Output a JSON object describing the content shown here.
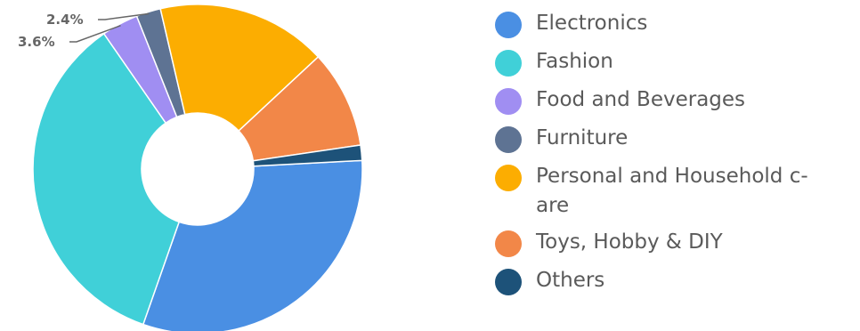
{
  "chart_data": {
    "type": "pie",
    "variant": "donut",
    "categories": [
      "Electronics",
      "Fashion",
      "Food and Beverages",
      "Furniture",
      "Personal and Household c-are",
      "Toys, Hobby & DIY",
      "Others"
    ],
    "values": [
      31.2,
      35.0,
      3.6,
      2.4,
      16.7,
      9.6,
      1.5
    ],
    "colors": [
      "#4a8fe3",
      "#40d0d8",
      "#a08ef2",
      "#5e7393",
      "#fcad01",
      "#f28748",
      "#1d5279"
    ],
    "data_labels": [
      {
        "category": "Furniture",
        "text": "2.4%"
      },
      {
        "category": "Food and Beverages",
        "text": "3.6%"
      }
    ],
    "legend_position": "right"
  },
  "legend": {
    "items": [
      {
        "label": "Electronics",
        "color": "#4a8fe3"
      },
      {
        "label": "Fashion",
        "color": "#40d0d8"
      },
      {
        "label": "Food and Beverages",
        "color": "#a08ef2"
      },
      {
        "label": "Furniture",
        "color": "#5e7393"
      },
      {
        "label": "Personal and Household c-\nare",
        "color": "#fcad01"
      },
      {
        "label": "Toys, Hobby & DIY",
        "color": "#f28748"
      },
      {
        "label": "Others",
        "color": "#1d5279"
      }
    ]
  }
}
